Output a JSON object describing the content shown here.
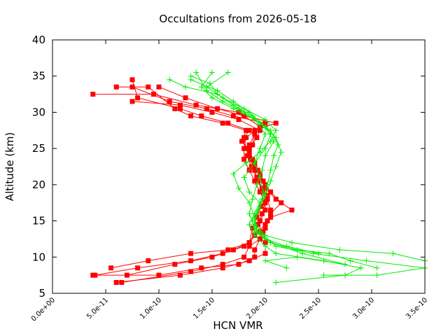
{
  "chart_data": {
    "type": "line",
    "title": "Occultations from 2026-05-18",
    "xlabel": "HCN VMR",
    "ylabel": "Altitude (km)",
    "xlim": [
      0,
      3.5e-10
    ],
    "ylim": [
      5,
      40
    ],
    "x_tick_labels": [
      "0.0e+00",
      "5.0e-11",
      "1.0e-10",
      "1.5e-10",
      "2.0e-10",
      "2.5e-10",
      "3.0e-10",
      "3.5e-10"
    ],
    "x_tick_values": [
      0,
      5e-11,
      1e-10,
      1.5e-10,
      2e-10,
      2.5e-10,
      3e-10,
      3.5e-10
    ],
    "y_tick_labels": [
      "5",
      "10",
      "15",
      "20",
      "25",
      "30",
      "35",
      "40"
    ],
    "y_tick_values": [
      5,
      10,
      15,
      20,
      25,
      30,
      35,
      40
    ],
    "grid": false,
    "colors": {
      "red_series": "#ff0000",
      "green_series": "#00ee00",
      "axis": "#000000"
    },
    "series": [
      {
        "color": "#ff0000",
        "marker": "square",
        "points": [
          [
            3.8e-11,
            7.5
          ],
          [
            1e-10,
            7.5
          ],
          [
            1.4e-10,
            8.5
          ],
          [
            1.75e-10,
            9.0
          ],
          [
            1.9e-10,
            10.0
          ],
          [
            1.9e-10,
            11.0
          ],
          [
            1.95e-10,
            12.5
          ],
          [
            1.95e-10,
            13.5
          ],
          [
            1.95e-10,
            15.0
          ],
          [
            2e-10,
            16.5
          ],
          [
            2e-10,
            17.5
          ],
          [
            1.95e-10,
            19.0
          ],
          [
            1.9e-10,
            20.5
          ],
          [
            1.85e-10,
            22.0
          ],
          [
            1.8e-10,
            23.5
          ],
          [
            1.8e-10,
            25.0
          ],
          [
            1.82e-10,
            26.5
          ],
          [
            1.95e-10,
            28.0
          ],
          [
            1.75e-10,
            30.0
          ],
          [
            1.35e-10,
            31.0
          ],
          [
            9.5e-11,
            32.5
          ],
          [
            3.8e-11,
            32.5
          ]
        ]
      },
      {
        "color": "#ff0000",
        "marker": "square",
        "points": [
          [
            6e-11,
            6.5
          ],
          [
            1.2e-10,
            7.5
          ],
          [
            1.6e-10,
            8.5
          ],
          [
            1.85e-10,
            9.5
          ],
          [
            2e-10,
            10.5
          ],
          [
            2e-10,
            12.0
          ],
          [
            1.98e-10,
            13.5
          ],
          [
            2.02e-10,
            15.0
          ],
          [
            2.05e-10,
            16.5
          ],
          [
            2.02e-10,
            18.0
          ],
          [
            1.97e-10,
            19.5
          ],
          [
            1.92e-10,
            21.0
          ],
          [
            1.87e-10,
            22.5
          ],
          [
            1.83e-10,
            24.0
          ],
          [
            1.85e-10,
            25.5
          ],
          [
            1.9e-10,
            27.0
          ],
          [
            2e-10,
            28.5
          ],
          [
            1.7e-10,
            29.5
          ],
          [
            1.45e-10,
            30.5
          ],
          [
            1.1e-10,
            31.5
          ],
          [
            7.5e-11,
            33.5
          ]
        ]
      },
      {
        "color": "#ff0000",
        "marker": "square",
        "points": [
          [
            6.5e-11,
            6.5
          ],
          [
            1.3e-10,
            8.0
          ],
          [
            1.6e-10,
            9.0
          ],
          [
            1.8e-10,
            10.0
          ],
          [
            1.85e-10,
            11.5
          ],
          [
            1.95e-10,
            12.5
          ],
          [
            2e-10,
            14.0
          ],
          [
            2.05e-10,
            15.5
          ],
          [
            2.25e-10,
            16.5
          ],
          [
            2.1e-10,
            18.0
          ],
          [
            2e-10,
            19.5
          ],
          [
            1.95e-10,
            21.0
          ],
          [
            1.9e-10,
            22.5
          ],
          [
            1.85e-10,
            24.0
          ],
          [
            1.88e-10,
            25.5
          ],
          [
            1.9e-10,
            27.5
          ],
          [
            2.1e-10,
            28.5
          ],
          [
            1.8e-10,
            29.5
          ],
          [
            1.55e-10,
            30.5
          ],
          [
            1.25e-10,
            32.0
          ],
          [
            1e-10,
            33.5
          ]
        ]
      },
      {
        "color": "#ff0000",
        "marker": "square",
        "points": [
          [
            4e-11,
            7.5
          ],
          [
            8e-11,
            8.5
          ],
          [
            1.3e-10,
            9.5
          ],
          [
            1.6e-10,
            10.5
          ],
          [
            1.8e-10,
            11.5
          ],
          [
            1.9e-10,
            13.0
          ],
          [
            1.93e-10,
            14.5
          ],
          [
            1.97e-10,
            16.0
          ],
          [
            2e-10,
            17.5
          ],
          [
            1.98e-10,
            19.0
          ],
          [
            1.93e-10,
            20.5
          ],
          [
            1.9e-10,
            22.0
          ],
          [
            1.86e-10,
            23.5
          ],
          [
            1.82e-10,
            25.0
          ],
          [
            1.8e-10,
            26.5
          ],
          [
            1.85e-10,
            27.5
          ],
          [
            1.65e-10,
            28.5
          ],
          [
            1.4e-10,
            29.5
          ],
          [
            1.2e-10,
            30.5
          ],
          [
            8e-11,
            32.0
          ],
          [
            7.5e-11,
            34.5
          ]
        ]
      },
      {
        "color": "#ff0000",
        "marker": "square",
        "points": [
          [
            5.5e-11,
            8.5
          ],
          [
            9e-11,
            9.5
          ],
          [
            1.3e-10,
            10.5
          ],
          [
            1.65e-10,
            11.0
          ],
          [
            1.85e-10,
            12.0
          ],
          [
            1.88e-10,
            14.0
          ],
          [
            1.92e-10,
            15.5
          ],
          [
            1.96e-10,
            17.0
          ],
          [
            2.02e-10,
            18.5
          ],
          [
            2e-10,
            20.0
          ],
          [
            1.95e-10,
            21.5
          ],
          [
            1.9e-10,
            23.0
          ],
          [
            1.85e-10,
            24.5
          ],
          [
            1.78e-10,
            26.0
          ],
          [
            1.82e-10,
            27.5
          ],
          [
            1.6e-10,
            28.5
          ],
          [
            1.3e-10,
            29.5
          ],
          [
            1.15e-10,
            30.5
          ],
          [
            9e-11,
            33.5
          ],
          [
            6e-11,
            33.5
          ]
        ]
      },
      {
        "color": "#ff0000",
        "marker": "square",
        "points": [
          [
            7e-11,
            7.5
          ],
          [
            1.15e-10,
            9.0
          ],
          [
            1.5e-10,
            10.0
          ],
          [
            1.7e-10,
            11.0
          ],
          [
            1.85e-10,
            12.0
          ],
          [
            1.9e-10,
            13.0
          ],
          [
            2e-10,
            14.5
          ],
          [
            2.05e-10,
            16.0
          ],
          [
            2.15e-10,
            17.5
          ],
          [
            2.05e-10,
            19.0
          ],
          [
            1.98e-10,
            20.5
          ],
          [
            1.93e-10,
            22.0
          ],
          [
            1.88e-10,
            23.5
          ],
          [
            1.85e-10,
            25.0
          ],
          [
            1.92e-10,
            26.5
          ],
          [
            1.95e-10,
            27.5
          ],
          [
            1.75e-10,
            29.0
          ],
          [
            1.5e-10,
            30.0
          ],
          [
            1.2e-10,
            31.0
          ],
          [
            7.5e-11,
            31.5
          ]
        ]
      },
      {
        "color": "#00ee00",
        "marker": "plus",
        "points": [
          [
            2.1e-10,
            6.5
          ],
          [
            2.75e-10,
            7.5
          ],
          [
            2.9e-10,
            8.5
          ],
          [
            2.55e-10,
            9.5
          ],
          [
            2.1e-10,
            10.5
          ],
          [
            2e-10,
            11.5
          ],
          [
            1.9e-10,
            13.0
          ],
          [
            1.85e-10,
            14.5
          ],
          [
            1.9e-10,
            16.0
          ],
          [
            1.95e-10,
            17.5
          ],
          [
            1.85e-10,
            19.0
          ],
          [
            1.8e-10,
            21.0
          ],
          [
            1.9e-10,
            23.0
          ],
          [
            2e-10,
            25.0
          ],
          [
            2.05e-10,
            27.0
          ],
          [
            1.95e-10,
            28.5
          ],
          [
            1.8e-10,
            30.0
          ],
          [
            1.6e-10,
            31.5
          ],
          [
            1.45e-10,
            33.0
          ],
          [
            1.35e-10,
            35.5
          ]
        ]
      },
      {
        "color": "#00ee00",
        "marker": "plus",
        "points": [
          [
            2.55e-10,
            7.5
          ],
          [
            3.05e-10,
            7.5
          ],
          [
            3.5e-10,
            8.5
          ],
          [
            2.95e-10,
            9.5
          ],
          [
            2.45e-10,
            10.5
          ],
          [
            2.1e-10,
            11.5
          ],
          [
            1.95e-10,
            13.5
          ],
          [
            1.9e-10,
            15.0
          ],
          [
            1.95e-10,
            17.0
          ],
          [
            1.98e-10,
            19.0
          ],
          [
            1.95e-10,
            21.0
          ],
          [
            1.9e-10,
            23.0
          ],
          [
            1.95e-10,
            25.0
          ],
          [
            2e-10,
            27.0
          ],
          [
            1.9e-10,
            29.0
          ],
          [
            1.7e-10,
            30.5
          ],
          [
            1.5e-10,
            32.0
          ],
          [
            1.4e-10,
            33.5
          ],
          [
            1.5e-10,
            35.5
          ]
        ]
      },
      {
        "color": "#00ee00",
        "marker": "plus",
        "points": [
          [
            2.2e-10,
            8.5
          ],
          [
            2e-10,
            9.5
          ],
          [
            2.3e-10,
            10.0
          ],
          [
            2.75e-10,
            9.0
          ],
          [
            2.35e-10,
            10.5
          ],
          [
            2.05e-10,
            12.0
          ],
          [
            1.9e-10,
            13.5
          ],
          [
            1.88e-10,
            15.0
          ],
          [
            1.93e-10,
            16.5
          ],
          [
            2e-10,
            18.5
          ],
          [
            2.05e-10,
            20.5
          ],
          [
            2.1e-10,
            22.5
          ],
          [
            2.15e-10,
            24.5
          ],
          [
            2.1e-10,
            26.5
          ],
          [
            2e-10,
            28.0
          ],
          [
            1.85e-10,
            30.0
          ],
          [
            1.7e-10,
            31.5
          ],
          [
            1.55e-10,
            33.0
          ],
          [
            1.3e-10,
            34.5
          ]
        ]
      },
      {
        "color": "#00ee00",
        "marker": "plus",
        "points": [
          [
            3.05e-10,
            8.5
          ],
          [
            2.8e-10,
            9.5
          ],
          [
            2.6e-10,
            10.5
          ],
          [
            2.3e-10,
            11.0
          ],
          [
            2.05e-10,
            12.0
          ],
          [
            1.92e-10,
            13.5
          ],
          [
            1.9e-10,
            15.5
          ],
          [
            1.85e-10,
            17.5
          ],
          [
            1.75e-10,
            19.5
          ],
          [
            1.7e-10,
            21.5
          ],
          [
            1.82e-10,
            23.0
          ],
          [
            1.95e-10,
            24.5
          ],
          [
            2.05e-10,
            26.0
          ],
          [
            2.1e-10,
            27.5
          ],
          [
            2e-10,
            29.0
          ],
          [
            1.8e-10,
            30.5
          ],
          [
            1.6e-10,
            32.0
          ],
          [
            1.45e-10,
            33.5
          ],
          [
            1.65e-10,
            35.5
          ]
        ]
      },
      {
        "color": "#00ee00",
        "marker": "plus",
        "points": [
          [
            3.5e-10,
            9.5
          ],
          [
            3.2e-10,
            10.5
          ],
          [
            2.7e-10,
            11.0
          ],
          [
            2.25e-10,
            12.0
          ],
          [
            2e-10,
            13.0
          ],
          [
            1.9e-10,
            14.5
          ],
          [
            1.92e-10,
            16.0
          ],
          [
            1.97e-10,
            18.0
          ],
          [
            2.02e-10,
            20.0
          ],
          [
            2.05e-10,
            22.0
          ],
          [
            2.08e-10,
            24.0
          ],
          [
            2.12e-10,
            25.5
          ],
          [
            2.05e-10,
            27.5
          ],
          [
            1.9e-10,
            29.0
          ],
          [
            1.75e-10,
            30.5
          ],
          [
            1.55e-10,
            32.5
          ],
          [
            1.25e-10,
            33.5
          ],
          [
            1.1e-10,
            34.5
          ]
        ]
      },
      {
        "color": "#00ee00",
        "marker": "plus",
        "points": [
          [
            2.5e-10,
            10.5
          ],
          [
            2.2e-10,
            11.5
          ],
          [
            2e-10,
            12.5
          ],
          [
            1.9e-10,
            14.0
          ],
          [
            1.85e-10,
            16.0
          ],
          [
            1.88e-10,
            18.0
          ],
          [
            1.92e-10,
            20.0
          ],
          [
            1.97e-10,
            22.0
          ],
          [
            2e-10,
            24.0
          ],
          [
            2.08e-10,
            26.0
          ],
          [
            2e-10,
            28.0
          ],
          [
            1.88e-10,
            29.5
          ],
          [
            1.7e-10,
            31.0
          ],
          [
            1.55e-10,
            32.5
          ],
          [
            1.48e-10,
            34.0
          ],
          [
            1.3e-10,
            35.0
          ]
        ]
      }
    ]
  }
}
